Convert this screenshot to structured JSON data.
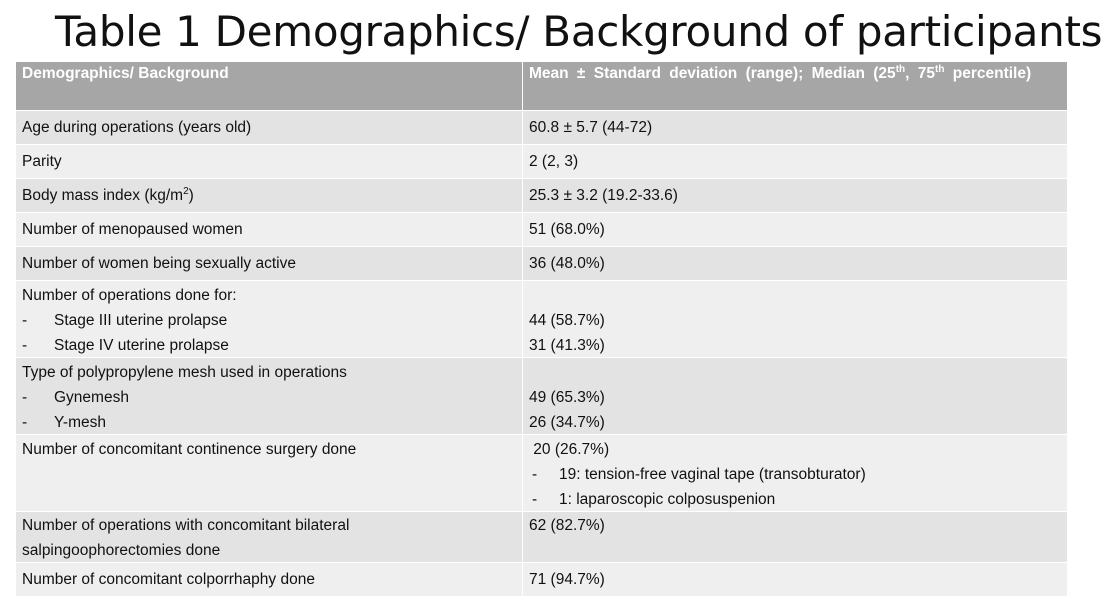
{
  "title": "Table 1 Demographics/ Background of participants",
  "table": {
    "header": {
      "col1": "Demographics/ Background",
      "col2_pre": "Mean ± Standard deviation (range); Median (25",
      "col2_sup1": "th",
      "col2_mid": ", 75",
      "col2_sup2": "th",
      "col2_post": " percentile)"
    },
    "rows": {
      "age": {
        "label": "Age during operations (years old)",
        "value": "60.8 ± 5.7 (44-72)"
      },
      "parity": {
        "label": "Parity",
        "value": "2 (2, 3)"
      },
      "bmi": {
        "label_pre": "Body mass index (kg/m",
        "label_sup": "2",
        "label_post": ")",
        "value": "25.3 ± 3.2 (19.2-33.6)"
      },
      "menopause": {
        "label": "Number  of menopaused  women",
        "value": "51 (68.0%)"
      },
      "sexually_active": {
        "label": "Number  of women being sexually active",
        "value": "36 (48.0%)"
      },
      "operations": {
        "label": "Number  of operations done for:",
        "items": [
          {
            "dash": "-",
            "label": "Stage III uterine prolapse",
            "value": "44 (58.7%)"
          },
          {
            "dash": "-",
            "label": "Stage IV uterine prolapse",
            "value": "31 (41.3%)"
          }
        ]
      },
      "mesh": {
        "label": "Type of polypropylene mesh used in operations",
        "items": [
          {
            "dash": "-",
            "label": "Gynemesh",
            "value": "49 (65.3%)"
          },
          {
            "dash": "-",
            "label": "Y-mesh",
            "value": "26 (34.7%)"
          }
        ]
      },
      "continence": {
        "label": "Number  of concomitant continence surgery done",
        "value": " 20 (26.7%)",
        "items": [
          {
            "dash": "-",
            "text": "19: tension-free vaginal tape (transobturator)"
          },
          {
            "dash": "-",
            "text": "1: laparoscopic colposuspenion"
          }
        ]
      },
      "salpingo": {
        "label_line1": "Number  of operations with concomitant bilateral",
        "label_line2": "salpingoophorectomies done",
        "value": "62 (82.7%)"
      },
      "colporrhaphy": {
        "label": "Number  of concomitant colporrhaphy done",
        "value": "71 (94.7%)"
      }
    }
  }
}
